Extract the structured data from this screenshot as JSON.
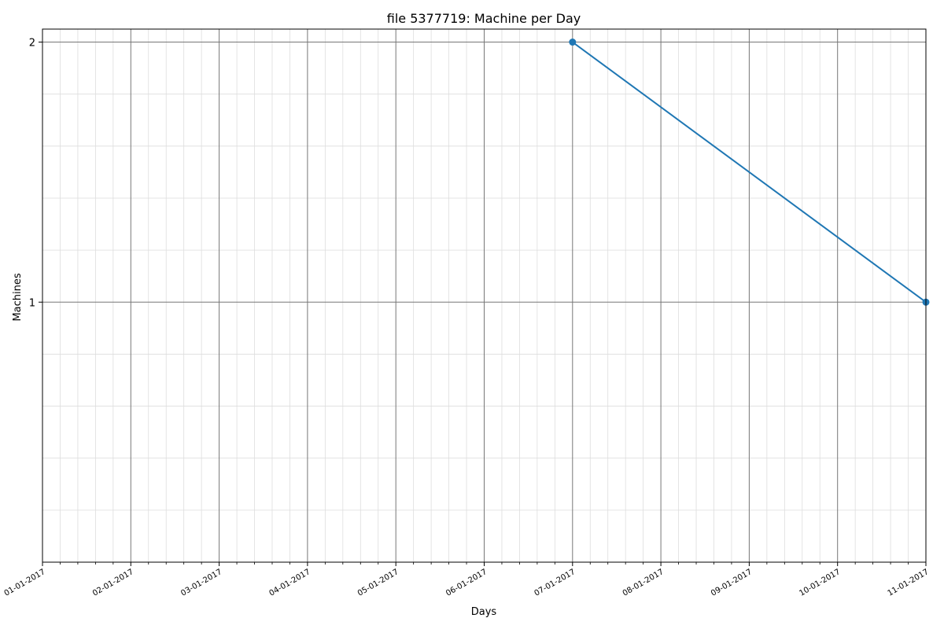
{
  "chart_data": {
    "type": "line",
    "title": "file 5377719: Machine per Day",
    "xlabel": "Days",
    "ylabel": "Machines",
    "x_ticks": [
      "01-01-2017",
      "02-01-2017",
      "03-01-2017",
      "04-01-2017",
      "05-01-2017",
      "06-01-2017",
      "07-01-2017",
      "08-01-2017",
      "09-01-2017",
      "10-01-2017",
      "11-01-2017"
    ],
    "y_ticks": [
      1,
      2
    ],
    "ylim": [
      0,
      2.05
    ],
    "xlim": [
      "01-01-2017",
      "11-01-2017"
    ],
    "grid": "major and minor",
    "series": [
      {
        "color": "#1f77b4",
        "marker": "circle",
        "points": [
          {
            "x": "07-01-2017",
            "y": 2
          },
          {
            "x": "11-01-2017",
            "y": 1
          }
        ]
      }
    ]
  }
}
